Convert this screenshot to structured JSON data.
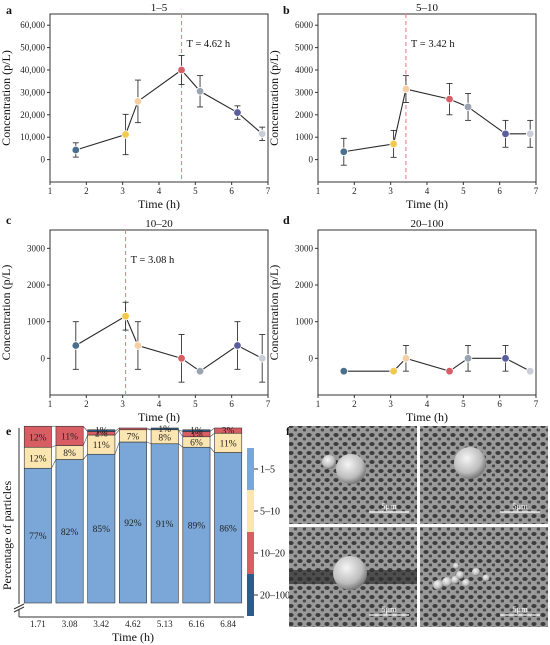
{
  "panel_letters": [
    "a",
    "b",
    "c",
    "d",
    "e",
    "f"
  ],
  "chart_data": [
    {
      "type": "line",
      "panel": "a",
      "title": "1–5",
      "xlabel": "Time (h)",
      "ylabel": "Concentration (p/L)",
      "xlim": [
        1,
        7
      ],
      "ylim": [
        -10000,
        65000
      ],
      "xticks": [
        1,
        2,
        3,
        4,
        5,
        6,
        7
      ],
      "yticks": [
        0,
        10000,
        20000,
        30000,
        40000,
        50000,
        60000
      ],
      "ytick_labels": [
        "0",
        "10,000",
        "20,000",
        "30,000",
        "40,000",
        "50,000",
        "60,000"
      ],
      "x": [
        1.71,
        3.08,
        3.42,
        4.62,
        5.13,
        6.16,
        6.84
      ],
      "values": [
        4300,
        11200,
        26000,
        40000,
        30500,
        21000,
        11500
      ],
      "err": [
        3200,
        9000,
        9500,
        6500,
        7000,
        3000,
        3000
      ],
      "vline": 4.62,
      "annotation": "T = 4.62 h"
    },
    {
      "type": "line",
      "panel": "b",
      "title": "5–10",
      "xlabel": "Time (h)",
      "ylabel": "Concentration (p/L)",
      "xlim": [
        1,
        7
      ],
      "ylim": [
        -1000,
        6500
      ],
      "xticks": [
        1,
        2,
        3,
        4,
        5,
        6,
        7
      ],
      "yticks": [
        0,
        1000,
        2000,
        3000,
        4000,
        5000,
        6000
      ],
      "ytick_labels": [
        "0",
        "1000",
        "2000",
        "3000",
        "4000",
        "5000",
        "6000"
      ],
      "x": [
        1.71,
        3.08,
        3.42,
        4.62,
        5.13,
        6.16,
        6.84
      ],
      "values": [
        350,
        700,
        3150,
        2700,
        2350,
        1150,
        1150
      ],
      "err": [
        600,
        600,
        600,
        700,
        600,
        600,
        600
      ],
      "vline": 3.42,
      "annotation": "T = 3.42 h"
    },
    {
      "type": "line",
      "panel": "c",
      "title": "10–20",
      "xlabel": "Time (h)",
      "ylabel": "Concentration (p/L)",
      "xlim": [
        1,
        7
      ],
      "ylim": [
        -1000,
        3500
      ],
      "xticks": [
        1,
        2,
        3,
        4,
        5,
        6,
        7
      ],
      "yticks": [
        0,
        1000,
        2000,
        3000
      ],
      "ytick_labels": [
        "0",
        "1000",
        "2000",
        "3000"
      ],
      "x": [
        1.71,
        3.08,
        3.42,
        4.62,
        5.13,
        6.16,
        6.84
      ],
      "values": [
        350,
        1150,
        350,
        0,
        -350,
        350,
        0
      ],
      "err": [
        650,
        380,
        650,
        650,
        0,
        650,
        650
      ],
      "vline": 3.08,
      "annotation": "T = 3.08 h"
    },
    {
      "type": "line",
      "panel": "d",
      "title": "20–100",
      "xlabel": "Time (h)",
      "ylabel": "Concentration (p/L)",
      "xlim": [
        1,
        7
      ],
      "ylim": [
        -1000,
        3500
      ],
      "xticks": [
        1,
        2,
        3,
        4,
        5,
        6,
        7
      ],
      "yticks": [
        0,
        1000,
        2000,
        3000
      ],
      "ytick_labels": [
        "0",
        "1000",
        "2000",
        "3000"
      ],
      "x": [
        1.71,
        3.08,
        3.42,
        4.62,
        5.13,
        6.16,
        6.84
      ],
      "values": [
        -350,
        -350,
        0,
        -350,
        0,
        0,
        -350
      ],
      "err": [
        0,
        0,
        350,
        0,
        350,
        350,
        0
      ],
      "vline": null,
      "annotation": ""
    },
    {
      "type": "bar",
      "stacked": true,
      "panel": "e",
      "xlabel": "Time (h)",
      "ylabel": "Percentage of particles",
      "categories": [
        "1.71",
        "3.08",
        "3.42",
        "4.62",
        "5.13",
        "6.16",
        "6.84"
      ],
      "series": [
        {
          "name": "1–5",
          "color": "#7ba7d8",
          "values": [
            77,
            82,
            85,
            92,
            91,
            89,
            86
          ]
        },
        {
          "name": "5–10",
          "color": "#fbe6b1",
          "values": [
            12,
            8,
            11,
            7,
            8,
            6,
            11
          ]
        },
        {
          "name": "10–20",
          "color": "#d85e63",
          "values": [
            12,
            11,
            2,
            1,
            0,
            3,
            3
          ]
        },
        {
          "name": "20–100",
          "color": "#2f5b8a",
          "values": [
            0,
            0,
            1,
            0,
            1,
            1,
            0
          ]
        }
      ],
      "labels": [
        [
          "77%",
          "12%",
          "12%",
          ""
        ],
        [
          "82%",
          "8%",
          "11%",
          ""
        ],
        [
          "85%",
          "11%",
          "2%",
          "1%"
        ],
        [
          "92%",
          "7%",
          "",
          ""
        ],
        [
          "91%",
          "8%",
          "",
          "1%"
        ],
        [
          "89%",
          "6%",
          "3%",
          "1%"
        ],
        [
          "86%",
          "11%",
          "3%",
          ""
        ]
      ],
      "axis_break": true
    }
  ],
  "point_colors": [
    "#4a6f8c",
    "#f2c94c",
    "#f4cfa5",
    "#d85e63",
    "#9aa4b1",
    "#5b5e9e",
    "#c9ced8"
  ],
  "micrographs": {
    "panel": "f",
    "scale_labels": [
      "5μm",
      "5μm",
      "5μm",
      "5μm"
    ]
  }
}
